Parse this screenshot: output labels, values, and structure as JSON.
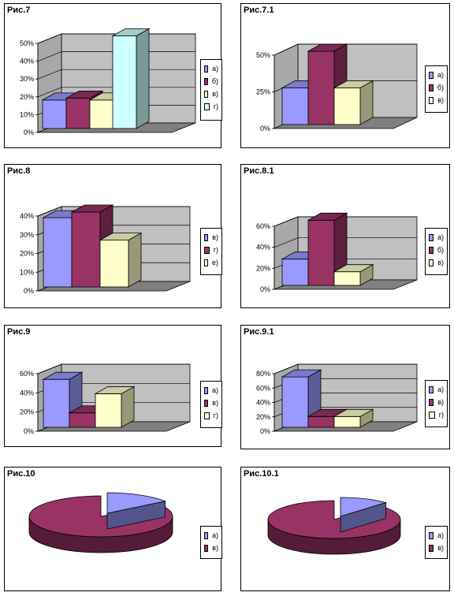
{
  "colors": {
    "a": "#9999FF",
    "b": "#993366",
    "v": "#FFFFCC",
    "g": "#CCFFFF",
    "wall": "#C0C0C0",
    "floor": "#808080"
  },
  "chart_data": [
    {
      "id": "fig7",
      "type": "bar",
      "title": "Рис.7",
      "categories": [
        "а)",
        "б)",
        "в)",
        "г)"
      ],
      "values": [
        16,
        17,
        16,
        52
      ],
      "ylim": [
        0,
        50
      ],
      "yticks": [
        "0%",
        "10%",
        "20%",
        "30%",
        "40%",
        "50%"
      ],
      "colors": [
        "#9999FF",
        "#993366",
        "#FFFFCC",
        "#CCFFFF"
      ],
      "legend_position": "right",
      "grid": true
    },
    {
      "id": "fig7_1",
      "type": "bar",
      "title": "Рис.7.1",
      "categories": [
        "а)",
        "б)",
        "в)"
      ],
      "values": [
        25,
        50,
        25
      ],
      "ylim": [
        0,
        50
      ],
      "yticks": [
        "0%",
        "25%",
        "50%"
      ],
      "colors": [
        "#9999FF",
        "#993366",
        "#FFFFCC"
      ],
      "legend_position": "right",
      "grid": true
    },
    {
      "id": "fig8",
      "type": "bar",
      "title": "Рис.8",
      "categories": [
        "в)",
        "г)",
        "е)"
      ],
      "values": [
        37,
        40,
        25
      ],
      "ylim": [
        0,
        40
      ],
      "yticks": [
        "0%",
        "10%",
        "20%",
        "30%",
        "40%"
      ],
      "colors": [
        "#9999FF",
        "#993366",
        "#FFFFCC"
      ],
      "legend_position": "right",
      "grid": true
    },
    {
      "id": "fig8_1",
      "type": "bar",
      "title": "Рис.8.1",
      "categories": [
        "а)",
        "б)",
        "в)"
      ],
      "values": [
        25,
        62,
        13
      ],
      "ylim": [
        0,
        60
      ],
      "yticks": [
        "0%",
        "20%",
        "40%",
        "60%"
      ],
      "colors": [
        "#9999FF",
        "#993366",
        "#FFFFCC"
      ],
      "legend_position": "right",
      "grid": true
    },
    {
      "id": "fig9",
      "type": "bar",
      "title": "Рис.9",
      "categories": [
        "а)",
        "в)",
        "г)"
      ],
      "values": [
        50,
        15,
        35
      ],
      "ylim": [
        0,
        60
      ],
      "yticks": [
        "0%",
        "20%",
        "40%",
        "60%"
      ],
      "colors": [
        "#9999FF",
        "#993366",
        "#FFFFCC"
      ],
      "legend_position": "right",
      "grid": true
    },
    {
      "id": "fig9_1",
      "type": "bar",
      "title": "Рис.9.1",
      "categories": [
        "а)",
        "в)",
        "г)"
      ],
      "values": [
        70,
        15,
        15
      ],
      "ylim": [
        0,
        80
      ],
      "yticks": [
        "0%",
        "20%",
        "40%",
        "60%",
        "80%"
      ],
      "colors": [
        "#9999FF",
        "#993366",
        "#FFFFCC"
      ],
      "legend_position": "right",
      "grid": true
    },
    {
      "id": "fig10",
      "type": "pie",
      "title": "Рис.10",
      "categories": [
        "а)",
        "в)"
      ],
      "values": [
        15,
        85
      ],
      "colors": [
        "#9999FF",
        "#993366"
      ],
      "legend_position": "right"
    },
    {
      "id": "fig10_1",
      "type": "pie",
      "title": "Рис.10.1",
      "categories": [
        "а)",
        "в)"
      ],
      "values": [
        12,
        88
      ],
      "colors": [
        "#9999FF",
        "#993366"
      ],
      "legend_position": "right"
    }
  ]
}
